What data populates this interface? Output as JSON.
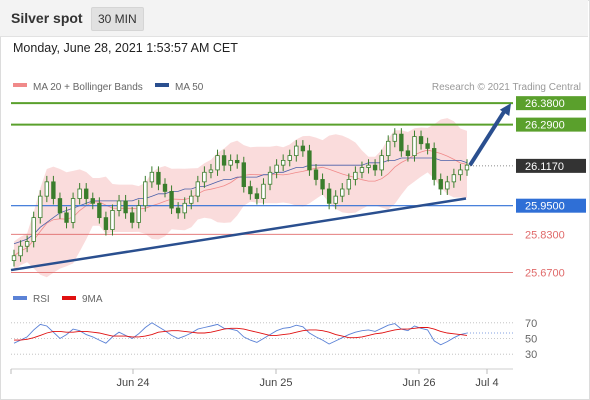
{
  "header": {
    "title": "Silver spot",
    "timeframe": "30 MIN"
  },
  "date_line": "Monday, June 28, 2021 1:53:57 AM CET",
  "legend": {
    "ma20": "MA 20 + Bollinger Bands",
    "ma50": "MA 50",
    "copyright": "Research © 2021 Trading Central"
  },
  "rsi_legend": {
    "rsi": "RSI",
    "ma": "9MA"
  },
  "colors": {
    "resistance": "#5aa02c",
    "pivot": "#2f6fd6",
    "support": "#e06a6a",
    "candle": "#3a7d2c",
    "trend": "#2a4f8f",
    "band": "#f9d6d6"
  },
  "chart_data": [
    {
      "type": "candlestick",
      "title": "",
      "xlabel": "",
      "ylabel": "",
      "x_ticks": [
        "Jun 24",
        "Jun 25",
        "Jun 26",
        "Jul 4"
      ],
      "ylim": [
        25.63,
        26.41
      ],
      "levels": [
        {
          "value": 26.38,
          "label": "26.3800",
          "kind": "resistance"
        },
        {
          "value": 26.29,
          "label": "26.2900",
          "kind": "resistance"
        },
        {
          "value": 26.117,
          "label": "26.1170",
          "kind": "last"
        },
        {
          "value": 25.95,
          "label": "25.9500",
          "kind": "pivot"
        },
        {
          "value": 25.83,
          "label": "25.8300",
          "kind": "support"
        },
        {
          "value": 25.67,
          "label": "25.6700",
          "kind": "support"
        }
      ],
      "series": [
        {
          "name": "MA 20 + Bollinger Bands",
          "close": [
            25.74,
            25.78,
            25.8,
            25.9,
            25.99,
            26.05,
            25.98,
            25.92,
            25.88,
            25.98,
            26.02,
            25.98,
            25.96,
            25.9,
            25.85,
            25.93,
            25.97,
            25.92,
            25.88,
            25.95,
            26.05,
            26.09,
            26.04,
            26.01,
            25.94,
            25.92,
            25.96,
            25.99,
            26.05,
            26.09,
            26.1,
            26.16,
            26.12,
            26.14,
            26.13,
            26.03,
            26.0,
            25.98,
            26.04,
            26.09,
            26.12,
            26.14,
            26.16,
            26.2,
            26.18,
            26.1,
            26.06,
            26.02,
            25.96,
            25.99,
            26.02,
            26.06,
            26.09,
            26.11,
            26.12,
            26.1,
            26.16,
            26.22,
            26.25,
            26.18,
            26.16,
            26.24,
            26.21,
            26.19,
            26.06,
            26.02,
            26.05,
            26.08,
            26.1,
            26.12
          ]
        },
        {
          "name": "MA 50",
          "values": [
            25.79,
            25.8,
            25.81,
            25.83,
            25.86,
            25.88,
            25.9,
            25.92,
            25.93,
            25.94,
            25.95,
            25.96,
            25.97,
            25.97,
            25.97,
            25.97,
            25.97,
            25.97,
            25.97,
            25.98,
            25.98,
            25.99,
            26.0,
            26.0,
            26.01,
            26.01,
            26.02,
            26.02,
            26.03,
            26.03,
            26.04,
            26.05,
            26.06,
            26.06,
            26.07,
            26.07,
            26.07,
            26.07,
            26.08,
            26.08,
            26.09,
            26.09,
            26.1,
            26.11,
            26.11,
            26.12,
            26.12,
            26.12,
            26.12,
            26.12,
            26.12,
            26.12,
            26.12,
            26.12,
            26.13,
            26.13,
            26.13,
            26.14,
            26.14,
            26.15,
            26.15,
            26.15,
            26.15,
            26.15,
            26.15,
            26.14,
            26.14,
            26.14,
            26.14,
            26.13
          ]
        }
      ],
      "trendline": {
        "from": 25.68,
        "to": 25.98
      },
      "projection": {
        "from": 26.12,
        "to": 26.38
      }
    },
    {
      "type": "line",
      "title": "",
      "ylim": [
        20,
        80
      ],
      "y_ticks": [
        70,
        50,
        30
      ],
      "series": [
        {
          "name": "RSI",
          "values": [
            44,
            48,
            52,
            61,
            68,
            66,
            58,
            50,
            55,
            62,
            60,
            55,
            52,
            48,
            44,
            52,
            58,
            54,
            50,
            56,
            64,
            70,
            65,
            60,
            54,
            50,
            53,
            57,
            62,
            64,
            66,
            68,
            63,
            62,
            60,
            52,
            48,
            45,
            50,
            55,
            60,
            63,
            64,
            67,
            65,
            57,
            52,
            48,
            43,
            47,
            51,
            55,
            58,
            60,
            61,
            59,
            63,
            67,
            69,
            62,
            60,
            66,
            63,
            61,
            47,
            42,
            46,
            51,
            55,
            57
          ]
        },
        {
          "name": "9MA",
          "values": [
            48,
            48,
            49,
            51,
            54,
            57,
            59,
            59,
            58,
            58,
            59,
            59,
            58,
            57,
            55,
            53,
            53,
            53,
            52,
            52,
            53,
            55,
            58,
            59,
            60,
            60,
            59,
            58,
            57,
            57,
            58,
            60,
            62,
            63,
            63,
            62,
            60,
            58,
            56,
            54,
            54,
            55,
            56,
            58,
            60,
            61,
            61,
            60,
            58,
            55,
            53,
            51,
            51,
            52,
            54,
            56,
            57,
            59,
            61,
            62,
            62,
            63,
            64,
            64,
            62,
            59,
            57,
            56,
            55,
            54
          ]
        }
      ]
    }
  ]
}
